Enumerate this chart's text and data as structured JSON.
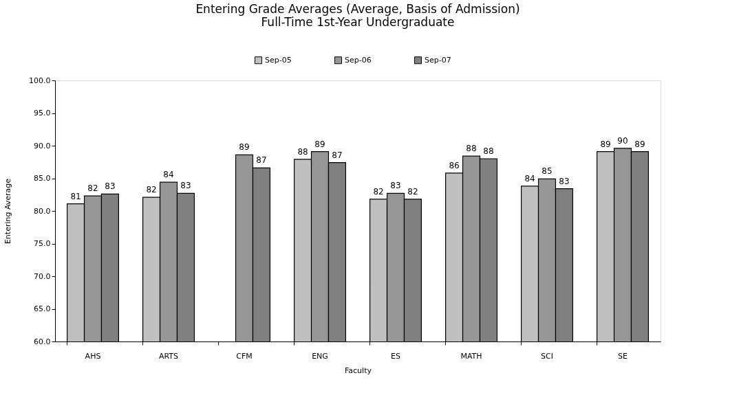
{
  "chart_data": {
    "type": "bar",
    "title": "Entering Grade Averages (Average, Basis of Admission)",
    "subtitle": "Full-Time 1st-Year Undergraduate",
    "xlabel": "Faculty",
    "ylabel": "Entering Average",
    "categories": [
      "AHS",
      "ARTS",
      "CFM",
      "ENG",
      "ES",
      "MATH",
      "SCI",
      "SE"
    ],
    "series": [
      {
        "name": "Sep-05",
        "color": "#c0c0c0",
        "values": [
          81.1,
          82.1,
          null,
          87.9,
          81.8,
          85.8,
          83.8,
          89.1
        ],
        "value_labels": [
          "81",
          "82",
          null,
          "88",
          "82",
          "86",
          "84",
          "89"
        ]
      },
      {
        "name": "Sep-06",
        "color": "#969696",
        "values": [
          82.3,
          84.4,
          88.6,
          89.1,
          82.7,
          88.4,
          84.9,
          89.6
        ],
        "value_labels": [
          "82",
          "84",
          "89",
          "89",
          "83",
          "88",
          "85",
          "90"
        ]
      },
      {
        "name": "Sep-07",
        "color": "#808080",
        "values": [
          82.6,
          82.7,
          86.6,
          87.4,
          81.8,
          88.0,
          83.4,
          89.1
        ],
        "value_labels": [
          "83",
          "83",
          "87",
          "87",
          "82",
          "88",
          "83",
          "89"
        ]
      }
    ],
    "ylim": [
      60,
      100
    ],
    "yticks": [
      {
        "value": 60,
        "label": "60.0"
      },
      {
        "value": 65,
        "label": "65.0"
      },
      {
        "value": 70,
        "label": "70.0"
      },
      {
        "value": 75,
        "label": "75.0"
      },
      {
        "value": 80,
        "label": "80.0"
      },
      {
        "value": 85,
        "label": "85.0"
      },
      {
        "value": 90,
        "label": "90.0"
      },
      {
        "value": 95,
        "label": "95.0"
      },
      {
        "value": 100,
        "label": "100.0"
      }
    ],
    "legend": "top",
    "grid": false
  }
}
